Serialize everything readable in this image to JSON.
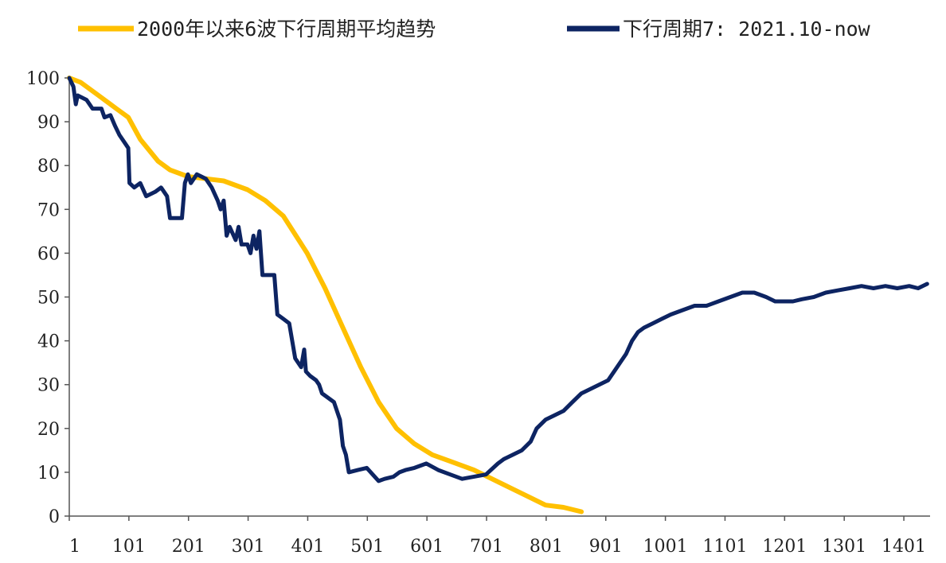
{
  "chart_data": {
    "type": "line",
    "title": "",
    "xlabel": "",
    "ylabel": "",
    "xlim": [
      1,
      1445
    ],
    "ylim": [
      0,
      100
    ],
    "grid": false,
    "legend_position": "top",
    "x_ticks": [
      "1",
      "101",
      "201",
      "301",
      "401",
      "501",
      "601",
      "701",
      "801",
      "901",
      "1001",
      "1101",
      "1201",
      "1301",
      "1401"
    ],
    "y_ticks": [
      "0",
      "10",
      "20",
      "30",
      "40",
      "50",
      "60",
      "70",
      "80",
      "90",
      "100"
    ],
    "series": [
      {
        "name": "2000年以来6波下行周期平均趋势",
        "color": "#FFC000",
        "points": [
          [
            1,
            100
          ],
          [
            20,
            99
          ],
          [
            50,
            96
          ],
          [
            80,
            93
          ],
          [
            100,
            91
          ],
          [
            120,
            86
          ],
          [
            150,
            81
          ],
          [
            170,
            79
          ],
          [
            200,
            77.5
          ],
          [
            230,
            77
          ],
          [
            260,
            76.5
          ],
          [
            300,
            74.5
          ],
          [
            330,
            72
          ],
          [
            360,
            68.5
          ],
          [
            400,
            60
          ],
          [
            430,
            52
          ],
          [
            460,
            43
          ],
          [
            490,
            34
          ],
          [
            520,
            26
          ],
          [
            550,
            20
          ],
          [
            580,
            16.5
          ],
          [
            610,
            14
          ],
          [
            640,
            12.5
          ],
          [
            680,
            10.5
          ],
          [
            710,
            8.5
          ],
          [
            740,
            6.5
          ],
          [
            770,
            4.5
          ],
          [
            800,
            2.5
          ],
          [
            830,
            2
          ],
          [
            860,
            1
          ]
        ]
      },
      {
        "name": "下行周期7: 2021.10-now",
        "color": "#0D2462",
        "points": [
          [
            1,
            100
          ],
          [
            8,
            98
          ],
          [
            12,
            94
          ],
          [
            15,
            96
          ],
          [
            30,
            95
          ],
          [
            40,
            93
          ],
          [
            55,
            93
          ],
          [
            60,
            91
          ],
          [
            70,
            91.5
          ],
          [
            78,
            89
          ],
          [
            85,
            87
          ],
          [
            95,
            85
          ],
          [
            100,
            84
          ],
          [
            102,
            76
          ],
          [
            110,
            75
          ],
          [
            120,
            76
          ],
          [
            130,
            73
          ],
          [
            145,
            74
          ],
          [
            155,
            75
          ],
          [
            165,
            73
          ],
          [
            170,
            68
          ],
          [
            180,
            68
          ],
          [
            190,
            68
          ],
          [
            195,
            76
          ],
          [
            200,
            78
          ],
          [
            205,
            76
          ],
          [
            215,
            78
          ],
          [
            230,
            77
          ],
          [
            240,
            75
          ],
          [
            250,
            72
          ],
          [
            255,
            70
          ],
          [
            260,
            72
          ],
          [
            265,
            64
          ],
          [
            270,
            66
          ],
          [
            280,
            63
          ],
          [
            285,
            66
          ],
          [
            290,
            62
          ],
          [
            300,
            62
          ],
          [
            305,
            60
          ],
          [
            310,
            64
          ],
          [
            315,
            61
          ],
          [
            320,
            65
          ],
          [
            325,
            55
          ],
          [
            335,
            55
          ],
          [
            345,
            55
          ],
          [
            350,
            46
          ],
          [
            360,
            45
          ],
          [
            370,
            44
          ],
          [
            380,
            36
          ],
          [
            390,
            34
          ],
          [
            395,
            38
          ],
          [
            398,
            33
          ],
          [
            405,
            32
          ],
          [
            415,
            31
          ],
          [
            420,
            30
          ],
          [
            425,
            28
          ],
          [
            435,
            27
          ],
          [
            445,
            26
          ],
          [
            455,
            22
          ],
          [
            460,
            16
          ],
          [
            465,
            14
          ],
          [
            470,
            10
          ],
          [
            485,
            10.5
          ],
          [
            500,
            11
          ],
          [
            520,
            8
          ],
          [
            530,
            8.5
          ],
          [
            545,
            9
          ],
          [
            555,
            10
          ],
          [
            565,
            10.5
          ],
          [
            580,
            11
          ],
          [
            600,
            12
          ],
          [
            620,
            10.5
          ],
          [
            640,
            9.5
          ],
          [
            660,
            8.5
          ],
          [
            680,
            9
          ],
          [
            700,
            9.5
          ],
          [
            720,
            12
          ],
          [
            730,
            13
          ],
          [
            745,
            14
          ],
          [
            760,
            15
          ],
          [
            775,
            17
          ],
          [
            785,
            20
          ],
          [
            800,
            22
          ],
          [
            815,
            23
          ],
          [
            830,
            24
          ],
          [
            845,
            26
          ],
          [
            860,
            28
          ],
          [
            875,
            29
          ],
          [
            890,
            30
          ],
          [
            905,
            31
          ],
          [
            915,
            33
          ],
          [
            925,
            35
          ],
          [
            935,
            37
          ],
          [
            945,
            40
          ],
          [
            955,
            42
          ],
          [
            965,
            43
          ],
          [
            980,
            44
          ],
          [
            995,
            45
          ],
          [
            1010,
            46
          ],
          [
            1030,
            47
          ],
          [
            1050,
            48
          ],
          [
            1070,
            48
          ],
          [
            1090,
            49
          ],
          [
            1110,
            50
          ],
          [
            1130,
            51
          ],
          [
            1150,
            51
          ],
          [
            1170,
            50
          ],
          [
            1185,
            49
          ],
          [
            1200,
            49
          ],
          [
            1215,
            49
          ],
          [
            1230,
            49.5
          ],
          [
            1250,
            50
          ],
          [
            1270,
            51
          ],
          [
            1290,
            51.5
          ],
          [
            1310,
            52
          ],
          [
            1330,
            52.5
          ],
          [
            1350,
            52
          ],
          [
            1370,
            52.5
          ],
          [
            1390,
            52
          ],
          [
            1410,
            52.5
          ],
          [
            1425,
            52
          ],
          [
            1440,
            53
          ]
        ]
      }
    ]
  }
}
